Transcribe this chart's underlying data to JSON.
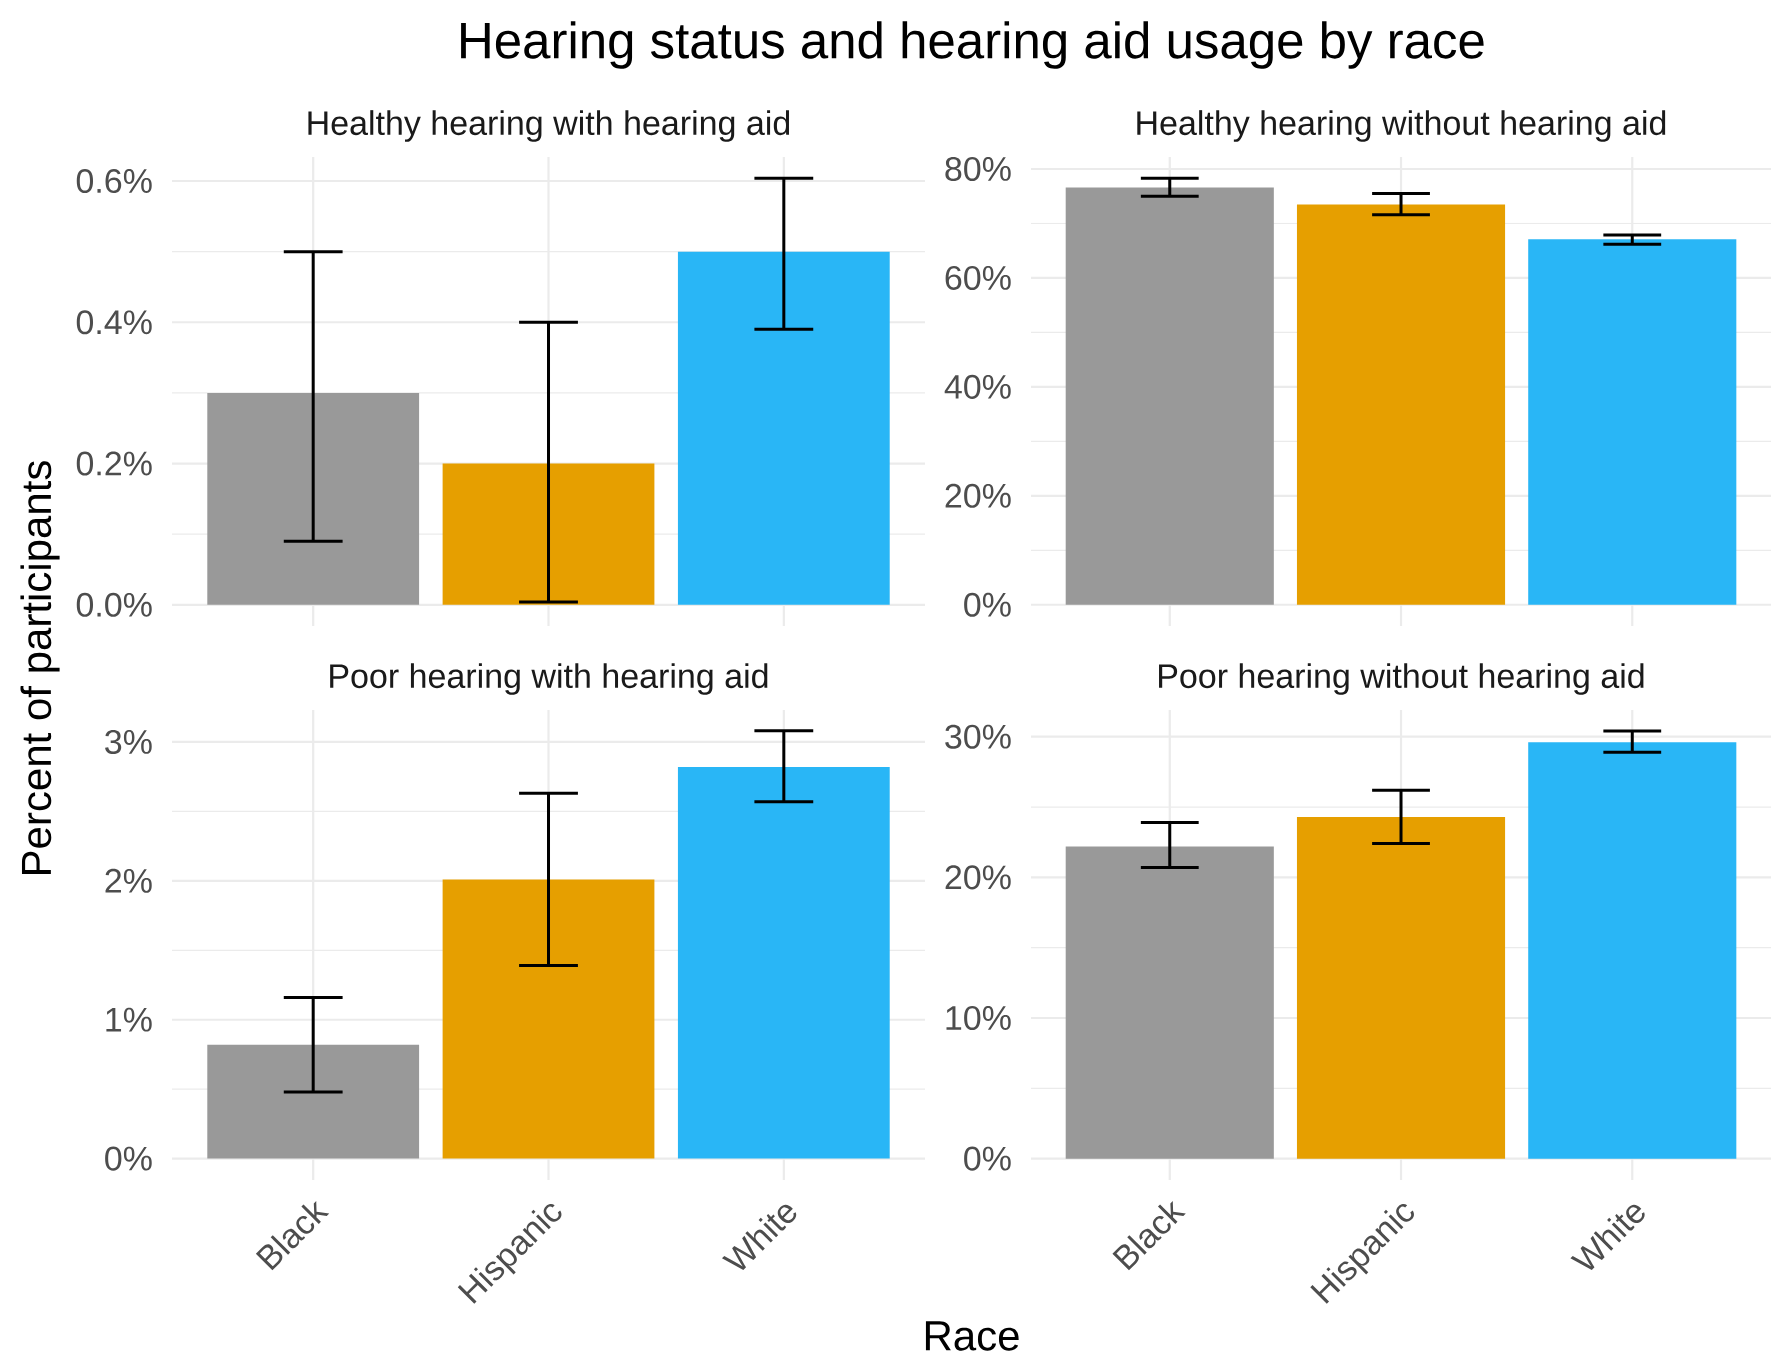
{
  "chart_data": [
    {
      "type": "bar",
      "title": "Hearing status and hearing aid usage by race",
      "subtitle": "Healthy hearing with hearing aid",
      "ylabel": "Percent of participants",
      "categories": [
        null,
        null,
        null
      ],
      "values": [
        0.3,
        0.2,
        0.5
      ],
      "colors": [
        "#999999",
        "#e69f00",
        "#29b6f6"
      ],
      "errors": [
        [
          0.09,
          0.5
        ],
        [
          0.004,
          0.4
        ],
        [
          0.39,
          0.604
        ]
      ],
      "ylim": [
        -0.03,
        0.634
      ],
      "yticks": [
        {
          "value": 0,
          "label": "0.0%"
        },
        {
          "value": 0.1,
          "label": null
        },
        {
          "value": 0.2,
          "label": "0.2%"
        },
        {
          "value": 0.3,
          "label": null
        },
        {
          "value": 0.4,
          "label": "0.4%"
        },
        {
          "value": 0.5,
          "label": null
        },
        {
          "value": 0.6,
          "label": "0.6%"
        }
      ],
      "grid": true,
      "tick_labels": "y"
    },
    {
      "type": "bar",
      "subtitle": "Healthy hearing without hearing aid",
      "categories": [
        null,
        null,
        null
      ],
      "values": [
        76.6,
        73.5,
        67.1
      ],
      "colors": [
        "#999999",
        "#e69f00",
        "#29b6f6"
      ],
      "errors": [
        [
          75.0,
          78.3
        ],
        [
          71.6,
          75.5
        ],
        [
          66.2,
          67.9
        ]
      ],
      "ylim": [
        -3.9,
        82.2
      ],
      "yticks": [
        {
          "value": 0,
          "label": "0%"
        },
        {
          "value": 10,
          "label": null
        },
        {
          "value": 20,
          "label": "20%"
        },
        {
          "value": 30,
          "label": null
        },
        {
          "value": 40,
          "label": "40%"
        },
        {
          "value": 50,
          "label": null
        },
        {
          "value": 60,
          "label": "60%"
        },
        {
          "value": 70,
          "label": null
        },
        {
          "value": 80,
          "label": "80%"
        }
      ],
      "grid": true,
      "tick_labels": "y"
    },
    {
      "type": "bar",
      "subtitle": "Poor hearing with hearing aid",
      "xlabel": "Race",
      "categories": [
        "Black",
        "Hispanic",
        "White"
      ],
      "values": [
        0.82,
        2.01,
        2.82
      ],
      "colors": [
        "#999999",
        "#e69f00",
        "#29b6f6"
      ],
      "errors": [
        [
          0.48,
          1.16
        ],
        [
          1.39,
          2.63
        ],
        [
          2.57,
          3.08
        ]
      ],
      "ylim": [
        -0.154,
        3.23
      ],
      "yticks": [
        {
          "value": 0,
          "label": "0%"
        },
        {
          "value": 0.5,
          "label": null
        },
        {
          "value": 1,
          "label": "1%"
        },
        {
          "value": 1.5,
          "label": null
        },
        {
          "value": 2,
          "label": "2%"
        },
        {
          "value": 2.5,
          "label": null
        },
        {
          "value": 3,
          "label": "3%"
        }
      ],
      "grid": true
    },
    {
      "type": "bar",
      "subtitle": "Poor hearing without hearing aid",
      "categories": [
        "Black",
        "Hispanic",
        "White"
      ],
      "values": [
        22.2,
        24.3,
        29.6
      ],
      "colors": [
        "#999999",
        "#e69f00",
        "#29b6f6"
      ],
      "errors": [
        [
          20.7,
          23.9
        ],
        [
          22.4,
          26.2
        ],
        [
          28.9,
          30.4
        ]
      ],
      "ylim": [
        -1.52,
        31.9
      ],
      "yticks": [
        {
          "value": 0,
          "label": "0%"
        },
        {
          "value": 5,
          "label": null
        },
        {
          "value": 10,
          "label": "10%"
        },
        {
          "value": 15,
          "label": null
        },
        {
          "value": 20,
          "label": "20%"
        },
        {
          "value": 25,
          "label": null
        },
        {
          "value": 30,
          "label": "30%"
        }
      ],
      "grid": true
    }
  ]
}
